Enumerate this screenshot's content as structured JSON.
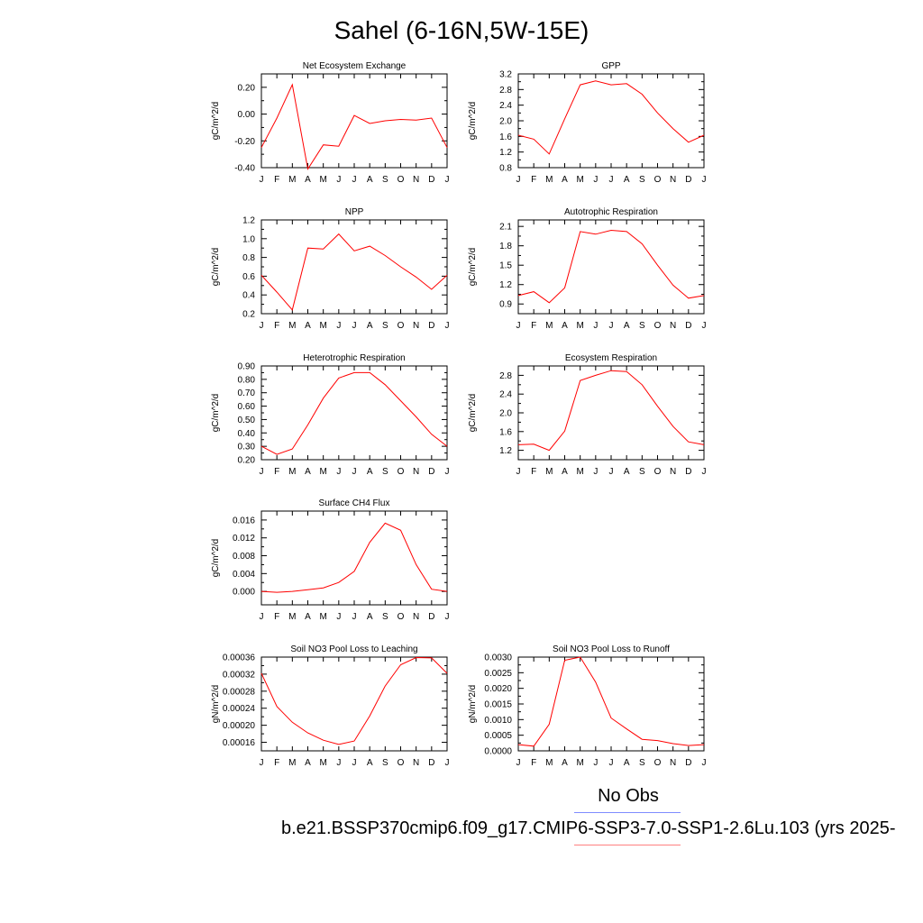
{
  "title": "Sahel (6-16N,5W-15E)",
  "legend": {
    "no_obs": "No Obs",
    "case": "b.e21.BSSP370cmip6.f09_g17.CMIP6-SSP3-7.0-SSP1-2.6Lu.103 (yrs 2025-",
    "colors": {
      "obs": "#7f8cff",
      "case": "#ff0000"
    }
  },
  "chart_data": [
    {
      "type": "line",
      "title": "Net Ecosystem Exchange",
      "ylabel": "gC/m^2/d",
      "x": [
        "J",
        "F",
        "M",
        "A",
        "M",
        "J",
        "J",
        "A",
        "S",
        "O",
        "N",
        "D",
        "J"
      ],
      "ylim": [
        -0.4,
        0.3
      ],
      "yticks": [
        -0.4,
        -0.2,
        0.0,
        0.2
      ],
      "ytick_labels": [
        "-0.40",
        "-0.20",
        "0.00",
        "0.20"
      ],
      "series": [
        {
          "values": [
            -0.25,
            -0.03,
            0.22,
            -0.41,
            -0.23,
            -0.24,
            -0.01,
            -0.07,
            -0.05,
            -0.04,
            -0.045,
            -0.03,
            -0.25
          ],
          "color": "#ff0000"
        }
      ]
    },
    {
      "type": "line",
      "title": "GPP",
      "ylabel": "gC/m^2/d",
      "x": [
        "J",
        "F",
        "M",
        "A",
        "M",
        "J",
        "J",
        "A",
        "S",
        "O",
        "N",
        "D",
        "J"
      ],
      "ylim": [
        0.8,
        3.2
      ],
      "yticks": [
        0.8,
        1.2,
        1.6,
        2.0,
        2.4,
        2.8,
        3.2
      ],
      "ytick_labels": [
        "0.8",
        "1.2",
        "1.6",
        "2.0",
        "2.4",
        "2.8",
        "3.2"
      ],
      "series": [
        {
          "values": [
            1.63,
            1.53,
            1.15,
            2.05,
            2.92,
            3.02,
            2.92,
            2.95,
            2.68,
            2.2,
            1.8,
            1.45,
            1.63
          ],
          "color": "#ff0000"
        }
      ]
    },
    {
      "type": "line",
      "title": "NPP",
      "ylabel": "gC/m^2/d",
      "x": [
        "J",
        "F",
        "M",
        "A",
        "M",
        "J",
        "J",
        "A",
        "S",
        "O",
        "N",
        "D",
        "J"
      ],
      "ylim": [
        0.2,
        1.2
      ],
      "yticks": [
        0.2,
        0.4,
        0.6,
        0.8,
        1.0,
        1.2
      ],
      "ytick_labels": [
        "0.2",
        "0.4",
        "0.6",
        "0.8",
        "1.0",
        "1.2"
      ],
      "series": [
        {
          "values": [
            0.61,
            0.43,
            0.24,
            0.9,
            0.89,
            1.05,
            0.87,
            0.92,
            0.82,
            0.7,
            0.59,
            0.46,
            0.61
          ],
          "color": "#ff0000"
        }
      ]
    },
    {
      "type": "line",
      "title": "Autotrophic Respiration",
      "ylabel": "gC/m^2/d",
      "x": [
        "J",
        "F",
        "M",
        "A",
        "M",
        "J",
        "J",
        "A",
        "S",
        "O",
        "N",
        "D",
        "J"
      ],
      "ylim": [
        0.75,
        2.2
      ],
      "yticks": [
        0.9,
        1.2,
        1.5,
        1.8,
        2.1
      ],
      "ytick_labels": [
        "0.9",
        "1.2",
        "1.5",
        "1.8",
        "2.1"
      ],
      "series": [
        {
          "values": [
            1.03,
            1.09,
            0.92,
            1.15,
            2.02,
            1.98,
            2.04,
            2.02,
            1.83,
            1.5,
            1.19,
            0.99,
            1.03
          ],
          "color": "#ff0000"
        }
      ]
    },
    {
      "type": "line",
      "title": "Heterotrophic Respiration",
      "ylabel": "gC/m^2/d",
      "x": [
        "J",
        "F",
        "M",
        "A",
        "M",
        "J",
        "J",
        "A",
        "S",
        "O",
        "N",
        "D",
        "J"
      ],
      "ylim": [
        0.2,
        0.9
      ],
      "yticks": [
        0.2,
        0.3,
        0.4,
        0.5,
        0.6,
        0.7,
        0.8,
        0.9
      ],
      "ytick_labels": [
        "0.20",
        "0.30",
        "0.40",
        "0.50",
        "0.60",
        "0.70",
        "0.80",
        "0.90"
      ],
      "series": [
        {
          "values": [
            0.3,
            0.24,
            0.28,
            0.46,
            0.66,
            0.81,
            0.85,
            0.85,
            0.76,
            0.64,
            0.52,
            0.39,
            0.3
          ],
          "color": "#ff0000"
        }
      ]
    },
    {
      "type": "line",
      "title": "Ecosystem Respiration",
      "ylabel": "gC/m^2/d",
      "x": [
        "J",
        "F",
        "M",
        "A",
        "M",
        "J",
        "J",
        "A",
        "S",
        "O",
        "N",
        "D",
        "J"
      ],
      "ylim": [
        1.0,
        3.0
      ],
      "yticks": [
        1.2,
        1.6,
        2.0,
        2.4,
        2.8
      ],
      "ytick_labels": [
        "1.2",
        "1.6",
        "2.0",
        "2.4",
        "2.8"
      ],
      "series": [
        {
          "values": [
            1.32,
            1.33,
            1.2,
            1.61,
            2.69,
            2.8,
            2.9,
            2.88,
            2.6,
            2.14,
            1.71,
            1.38,
            1.32
          ],
          "color": "#ff0000"
        }
      ]
    },
    {
      "type": "line",
      "title": "Surface CH4 Flux",
      "ylabel": "gC/m^2/d",
      "x": [
        "J",
        "F",
        "M",
        "A",
        "M",
        "J",
        "J",
        "A",
        "S",
        "O",
        "N",
        "D",
        "J"
      ],
      "ylim": [
        -0.003,
        0.018
      ],
      "yticks": [
        0.0,
        0.004,
        0.008,
        0.012,
        0.016
      ],
      "ytick_labels": [
        "0.000",
        "0.004",
        "0.008",
        "0.012",
        "0.016"
      ],
      "series": [
        {
          "values": [
            0.0,
            -0.0002,
            0.0,
            0.0004,
            0.0008,
            0.002,
            0.0045,
            0.011,
            0.0153,
            0.0137,
            0.006,
            0.0005,
            0.0
          ],
          "color": "#ff0000"
        }
      ]
    },
    {
      "type": "line",
      "title": "Soil NO3 Pool Loss to Leaching",
      "ylabel": "gN/m^2/d",
      "x": [
        "J",
        "F",
        "M",
        "A",
        "M",
        "J",
        "J",
        "A",
        "S",
        "O",
        "N",
        "D",
        "J"
      ],
      "ylim": [
        0.00014,
        0.00036
      ],
      "yticks": [
        0.00016,
        0.0002,
        0.00024,
        0.00028,
        0.00032,
        0.00036
      ],
      "ytick_labels": [
        "0.00016",
        "0.00020",
        "0.00024",
        "0.00028",
        "0.00032",
        "0.00036"
      ],
      "series": [
        {
          "values": [
            0.000322,
            0.000244,
            0.000207,
            0.000182,
            0.000165,
            0.000155,
            0.000163,
            0.000222,
            0.000292,
            0.000342,
            0.000359,
            0.000358,
            0.000322
          ],
          "color": "#ff0000"
        }
      ]
    },
    {
      "type": "line",
      "title": "Soil NO3 Pool Loss to Runoff",
      "ylabel": "gN/m^2/d",
      "x": [
        "J",
        "F",
        "M",
        "A",
        "M",
        "J",
        "J",
        "A",
        "S",
        "O",
        "N",
        "D",
        "J"
      ],
      "ylim": [
        0.0,
        0.003
      ],
      "yticks": [
        0.0,
        0.0005,
        0.001,
        0.0015,
        0.002,
        0.0025,
        0.003
      ],
      "ytick_labels": [
        "0.0000",
        "0.0005",
        "0.0010",
        "0.0015",
        "0.0020",
        "0.0025",
        "0.0030"
      ],
      "series": [
        {
          "values": [
            0.0002,
            0.00015,
            0.00085,
            0.0029,
            0.003,
            0.0022,
            0.00105,
            0.0007,
            0.00037,
            0.00033,
            0.00023,
            0.00017,
            0.0002
          ],
          "color": "#ff0000"
        }
      ]
    }
  ]
}
